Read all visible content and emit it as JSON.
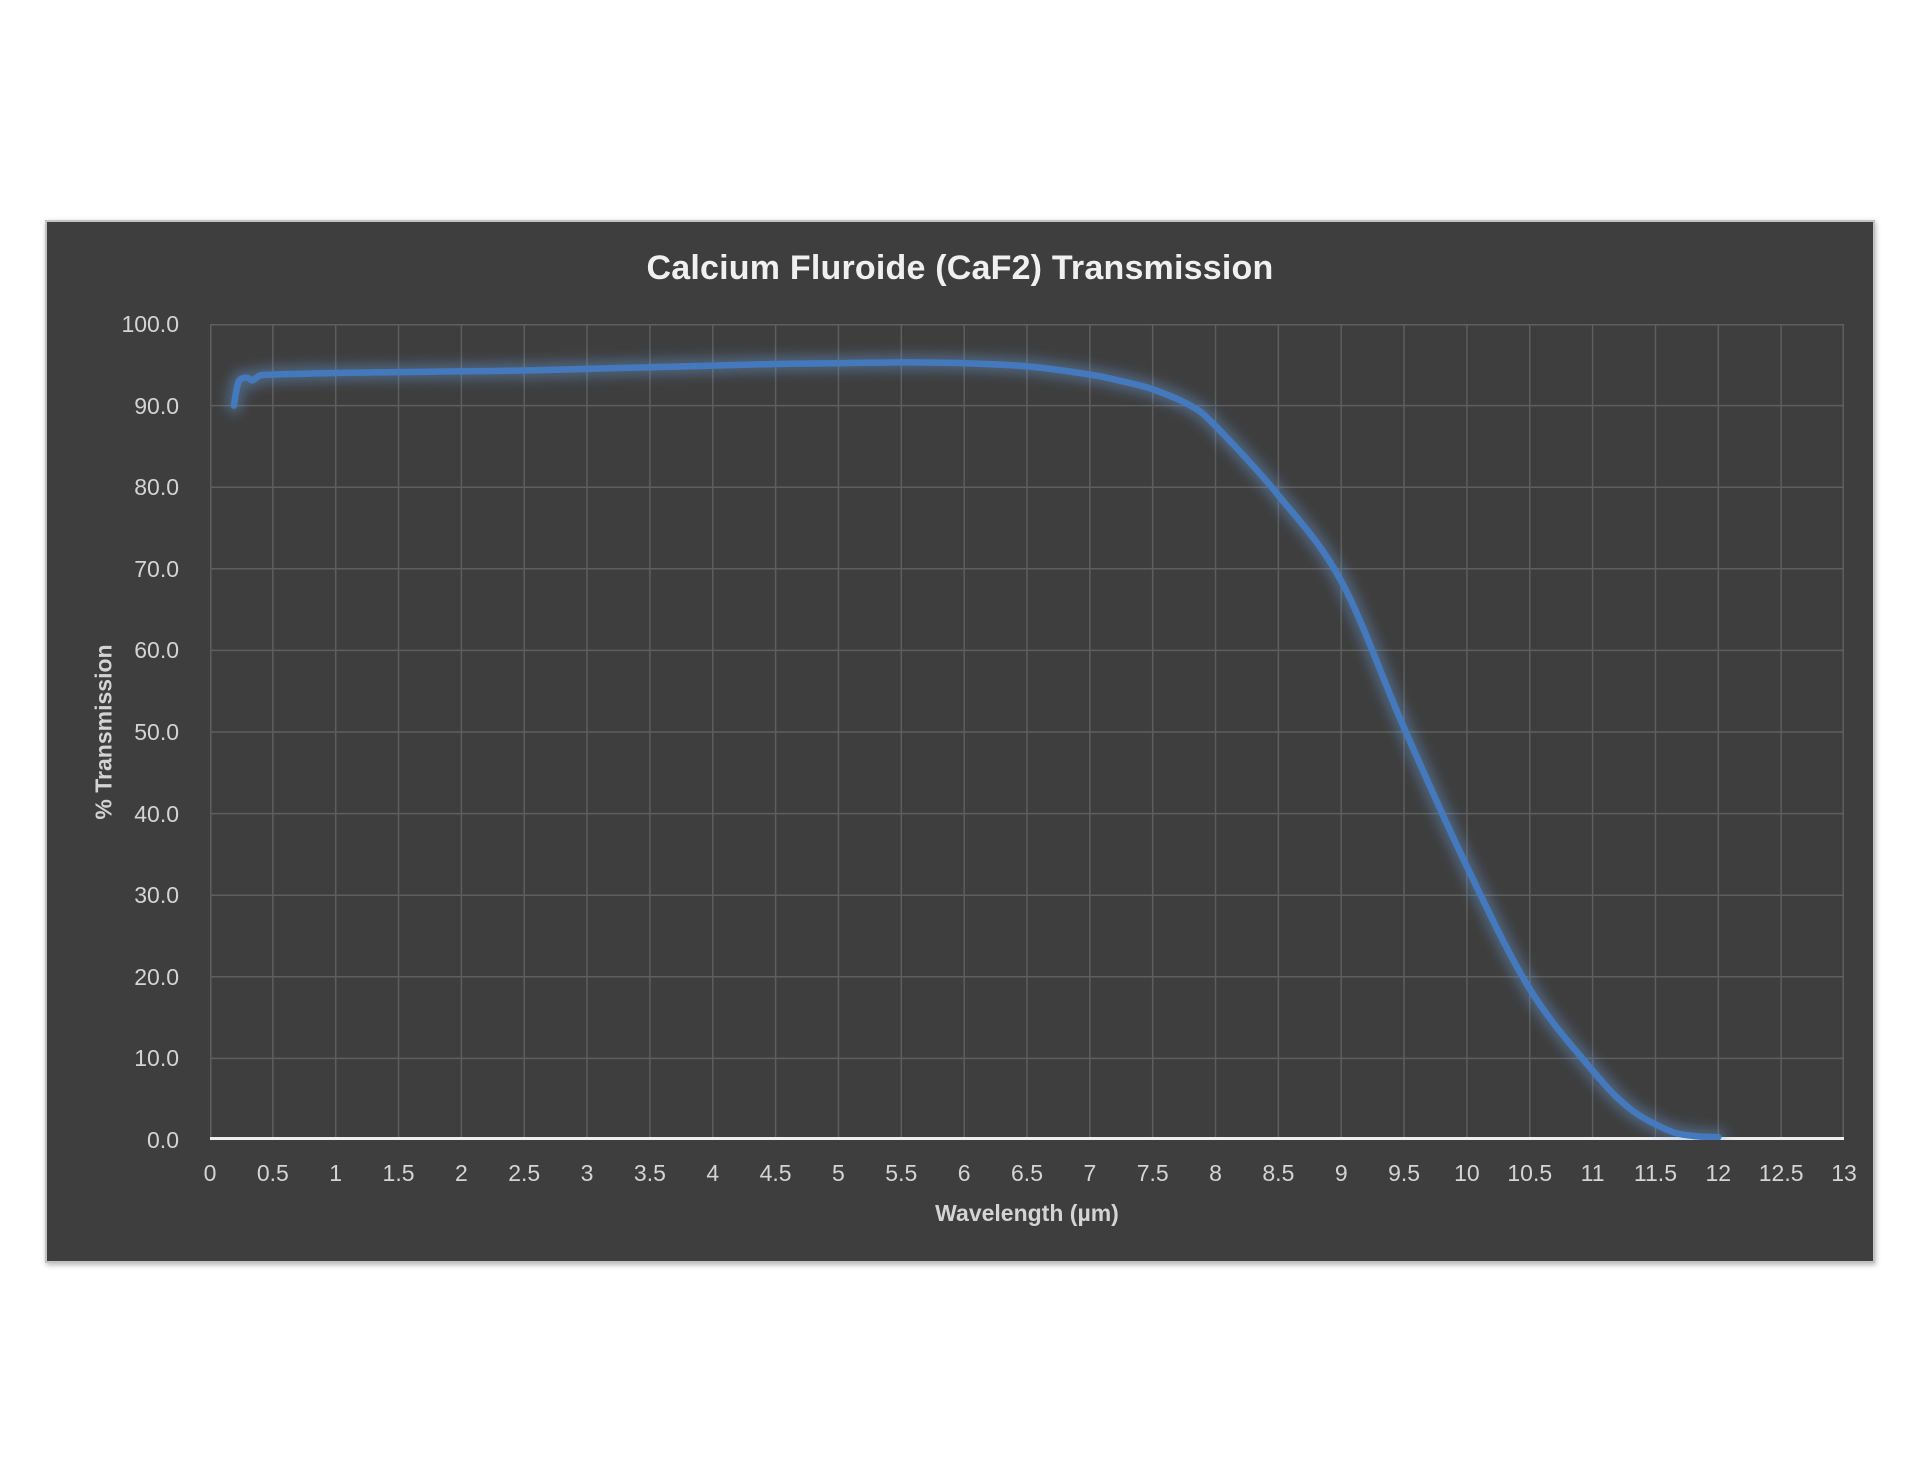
{
  "style": {
    "page_bg": "#ffffff",
    "chart_bg": "#3e3e3e",
    "chart_border": "#c2c2c2",
    "grid_color": "#5e5e5e",
    "axis_line_color": "#efefef",
    "tick_label_color": "#d4d4d4",
    "title_color": "#f0f0f0",
    "line_color": "#4579bd",
    "glow_color": "#6ba4e7"
  },
  "chart_data": {
    "type": "line",
    "title": "Calcium Fluroide (CaF2) Transmission",
    "xlabel": "Wavelength (µm)",
    "ylabel": "% Transmission",
    "xlim": [
      0,
      13
    ],
    "ylim": [
      0,
      100
    ],
    "grid": true,
    "legend": false,
    "x_tick_values": [
      0,
      0.5,
      1,
      1.5,
      2,
      2.5,
      3,
      3.5,
      4,
      4.5,
      5,
      5.5,
      6,
      6.5,
      7,
      7.5,
      8,
      8.5,
      9,
      9.5,
      10,
      10.5,
      11,
      11.5,
      12,
      12.5,
      13
    ],
    "x_tick_labels": [
      "0",
      "0.5",
      "1",
      "1.5",
      "2",
      "2.5",
      "3",
      "3.5",
      "4",
      "4.5",
      "5",
      "5.5",
      "6",
      "6.5",
      "7",
      "7.5",
      "8",
      "8.5",
      "9",
      "9.5",
      "10",
      "10.5",
      "11",
      "11.5",
      "12",
      "12.5",
      "13"
    ],
    "y_tick_values": [
      100,
      90,
      80,
      70,
      60,
      50,
      40,
      30,
      20,
      10,
      0
    ],
    "y_tick_labels": [
      "100.0",
      "90.0",
      "80.0",
      "70.0",
      "60.0",
      "50.0",
      "40.0",
      "30.0",
      "20.0",
      "10.0",
      "0.0"
    ],
    "series": [
      {
        "x": [
          0.19,
          0.22,
          0.25,
          0.3,
          0.34,
          0.4,
          0.5,
          0.75,
          1.0,
          1.5,
          2.0,
          2.5,
          3.0,
          3.5,
          4.0,
          4.5,
          5.0,
          5.5,
          6.0,
          6.5,
          7.0,
          7.25,
          7.5,
          7.8,
          8.0,
          8.5,
          9.0,
          9.5,
          10.0,
          10.5,
          11.0,
          11.3,
          11.6,
          11.8,
          12.0
        ],
        "y": [
          90.0,
          92.6,
          93.3,
          93.4,
          93.1,
          93.7,
          93.8,
          93.9,
          94.0,
          94.1,
          94.2,
          94.3,
          94.5,
          94.7,
          94.9,
          95.1,
          95.2,
          95.3,
          95.2,
          94.8,
          93.8,
          93.0,
          92.0,
          90.0,
          87.5,
          79.0,
          68.5,
          50.5,
          33.5,
          18.5,
          8.5,
          3.8,
          1.2,
          0.5,
          0.35
        ]
      }
    ]
  }
}
